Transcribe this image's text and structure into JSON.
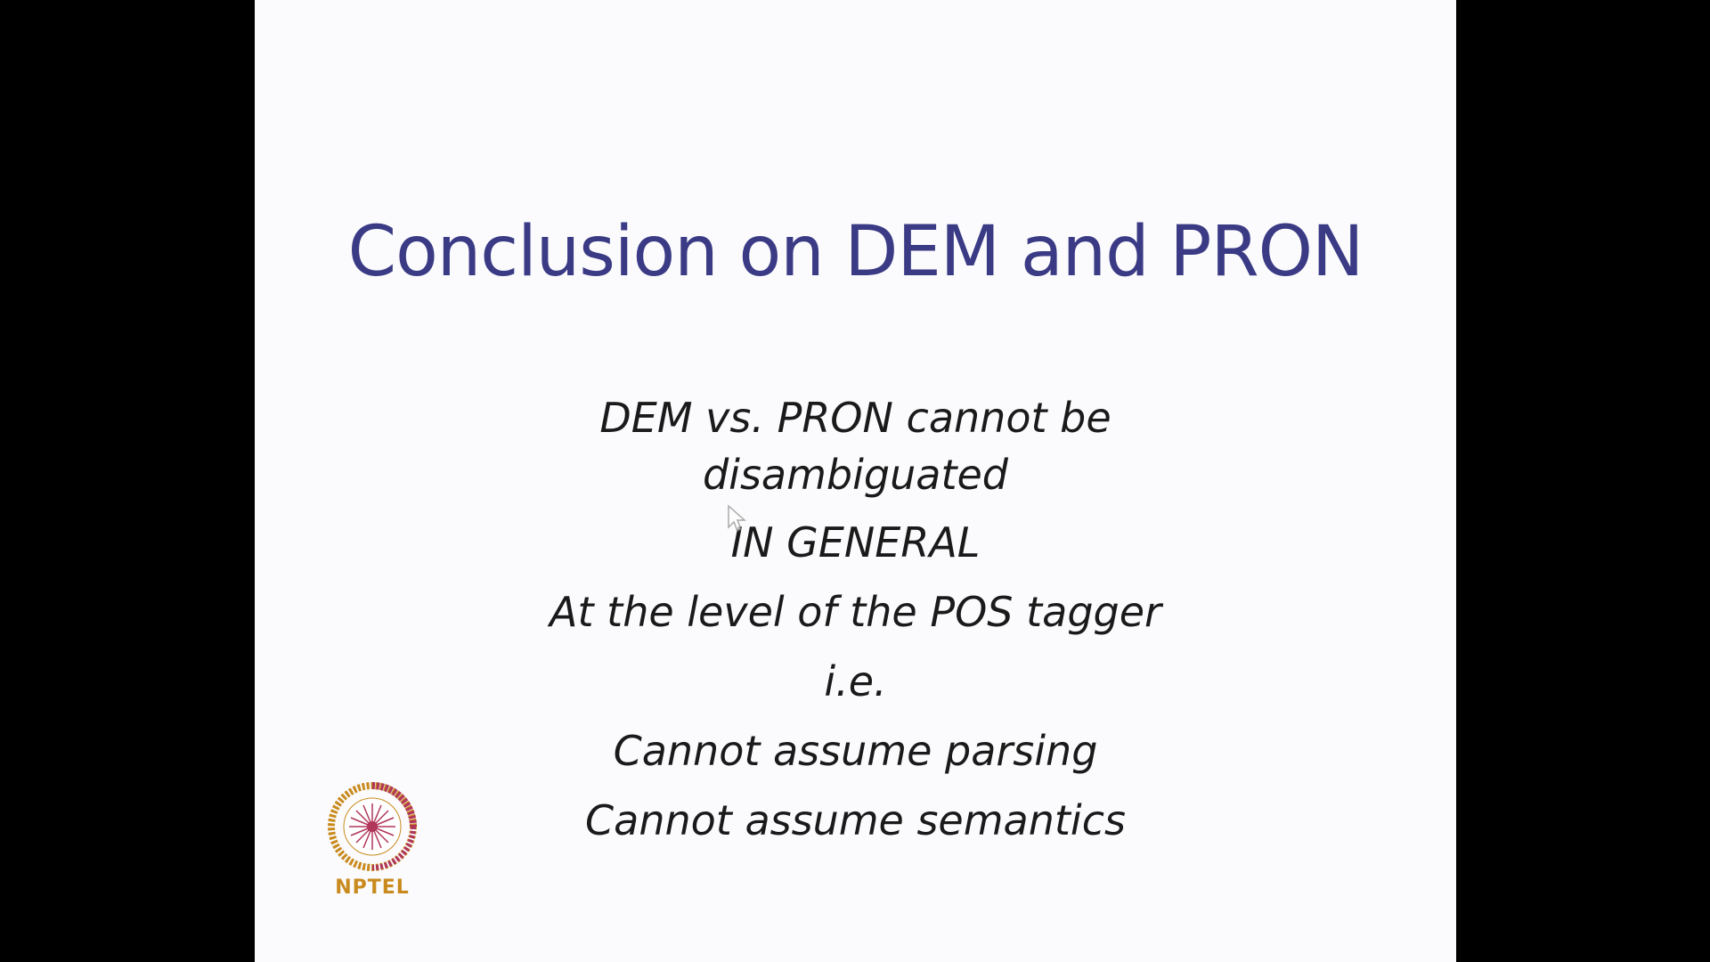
{
  "slide": {
    "title": "Conclusion on DEM and PRON",
    "lines": [
      "DEM vs. PRON cannot be",
      "disambiguated",
      "IN GENERAL",
      "At the level of the POS tagger",
      "i.e.",
      "Cannot assume parsing",
      "Cannot assume semantics"
    ]
  },
  "logo": {
    "text": "NPTEL",
    "icon": "nptel-logo-icon"
  },
  "colors": {
    "title": "#3a3a85",
    "body": "#1a1a1a",
    "logo_text": "#c98a1e",
    "slide_bg": "#fbfbfd",
    "letterbox": "#000000"
  }
}
